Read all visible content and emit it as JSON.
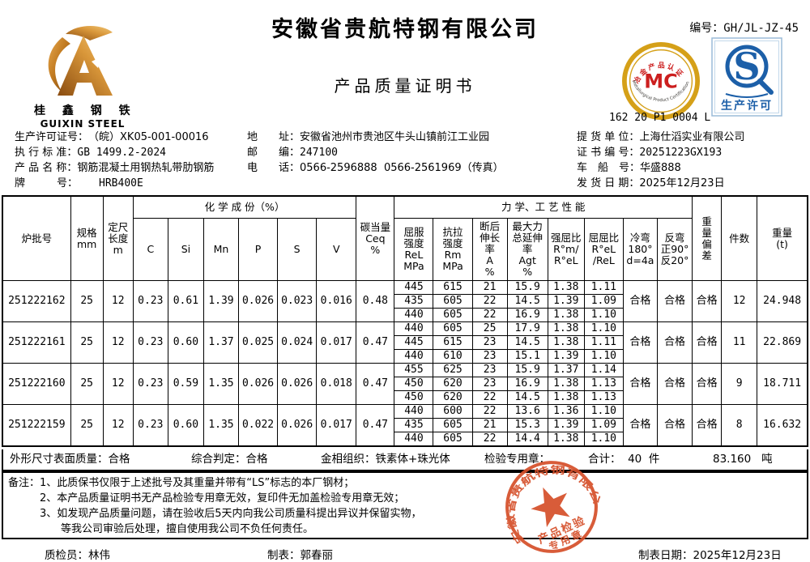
{
  "header": {
    "company": "安徽省贵航特钢有限公司",
    "doc_title": "产品质量证明书",
    "serial_label": "编号：",
    "serial_value": "GH/JL-JZ-45",
    "logo": {
      "cn": "桂 鑫 钢 铁",
      "en": "GUIXIN STEEL"
    },
    "mc_badge": {
      "arc_top": "冶金产品认证",
      "center": "MC",
      "arc_bottom": "Metallurgical Product Certification",
      "code": "162 20 P1 0004 L",
      "ring_color": "#d5a018",
      "letter_color": "#cc1f1f"
    },
    "qs_badge": {
      "letter": "S",
      "label": "生产许可",
      "color": "#1c5fa8"
    }
  },
  "info": {
    "left": [
      {
        "label": "生产许可证号：",
        "value": "（皖）XK05-001-00016"
      },
      {
        "label": "执 行 标 准：",
        "value": "GB 1499.2-2024"
      },
      {
        "label": "产 品 名 称：",
        "value": "钢筋混凝土用钢热轧带肋钢筋"
      },
      {
        "label": "牌　　　号：",
        "value": "　　HRB400E"
      }
    ],
    "middle": [
      {
        "label": "地　　址：",
        "value": "安徽省池州市贵池区牛头山镇前江工业园"
      },
      {
        "label": "邮　　编：",
        "value": "247100"
      },
      {
        "label": "电　　话：",
        "value": "0566-2596888  0566-2561969（传真）"
      }
    ],
    "right": [
      {
        "label": "提 货 单 位：",
        "value": "上海仕滔实业有限公司"
      },
      {
        "label": "证 书 编 号：",
        "value": "20251223GX193"
      },
      {
        "label": "车　船　号：",
        "value": "华盛888"
      },
      {
        "label": "发 货 日 期：",
        "value": "2025年12月23日"
      }
    ]
  },
  "table": {
    "headers": {
      "heat": "炉批号",
      "spec": "规格\nmm",
      "length": "定尺\n长度\nm",
      "chem_group": "化 学 成 份（%）",
      "chem": [
        "C",
        "Si",
        "Mn",
        "P",
        "S",
        "V"
      ],
      "ceq": "碳当量\nCeq\n%",
      "mech_group": "力 学、工 艺 性 能",
      "mech": [
        "屈服\n强度\nReL\nMPa",
        "抗拉\n强度\nRm\nMPa",
        "断后\n伸长\n率\nA\n%",
        "最大力\n总延伸\n率\nAgt\n%",
        "强屈比\nR°m/\nR°eL",
        "屈屈比\nR°eL\n/ReL",
        "冷弯\n180°\nd=4a",
        "反弯\n正90°\n反20°"
      ],
      "weight_dev": "重\n量\n偏\n差",
      "pieces": "件数",
      "weight": "重量\n(t)"
    },
    "batches": [
      {
        "heat_no": "251222162",
        "spec": "25",
        "length": "12",
        "chem": [
          "0.23",
          "0.61",
          "1.39",
          "0.026",
          "0.023",
          "0.016"
        ],
        "ceq": "0.48",
        "mech": [
          [
            "445",
            "615",
            "21",
            "15.9",
            "1.38",
            "1.11"
          ],
          [
            "435",
            "605",
            "22",
            "14.5",
            "1.39",
            "1.09"
          ],
          [
            "440",
            "605",
            "22",
            "16.9",
            "1.38",
            "1.10"
          ]
        ],
        "cold_bend": "合格",
        "reverse_bend": "合格",
        "weight_deviation": "合格",
        "pieces": "12",
        "weight": "24.948"
      },
      {
        "heat_no": "251222161",
        "spec": "25",
        "length": "12",
        "chem": [
          "0.23",
          "0.60",
          "1.37",
          "0.025",
          "0.024",
          "0.017"
        ],
        "ceq": "0.47",
        "mech": [
          [
            "440",
            "605",
            "25",
            "17.9",
            "1.38",
            "1.10"
          ],
          [
            "445",
            "615",
            "23",
            "14.5",
            "1.38",
            "1.11"
          ],
          [
            "440",
            "610",
            "23",
            "15.1",
            "1.39",
            "1.10"
          ]
        ],
        "cold_bend": "合格",
        "reverse_bend": "合格",
        "weight_deviation": "合格",
        "pieces": "11",
        "weight": "22.869"
      },
      {
        "heat_no": "251222160",
        "spec": "25",
        "length": "12",
        "chem": [
          "0.23",
          "0.59",
          "1.35",
          "0.026",
          "0.026",
          "0.018"
        ],
        "ceq": "0.47",
        "mech": [
          [
            "455",
            "625",
            "23",
            "15.9",
            "1.37",
            "1.14"
          ],
          [
            "450",
            "620",
            "23",
            "16.9",
            "1.38",
            "1.13"
          ],
          [
            "450",
            "620",
            "22",
            "14.5",
            "1.38",
            "1.13"
          ]
        ],
        "cold_bend": "合格",
        "reverse_bend": "合格",
        "weight_deviation": "合格",
        "pieces": "9",
        "weight": "18.711"
      },
      {
        "heat_no": "251222159",
        "spec": "25",
        "length": "12",
        "chem": [
          "0.23",
          "0.60",
          "1.35",
          "0.022",
          "0.026",
          "0.017"
        ],
        "ceq": "0.47",
        "mech": [
          [
            "440",
            "600",
            "22",
            "13.6",
            "1.36",
            "1.10"
          ],
          [
            "435",
            "605",
            "21",
            "15.3",
            "1.39",
            "1.09"
          ],
          [
            "440",
            "605",
            "22",
            "14.4",
            "1.38",
            "1.10"
          ]
        ],
        "cold_bend": "合格",
        "reverse_bend": "合格",
        "weight_deviation": "合格",
        "pieces": "8",
        "weight": "16.632"
      }
    ]
  },
  "summary": {
    "surface": "外形尺寸表面质量：合格",
    "overall": "综合判定：合格",
    "metallographic": "金相组织：铁素体+珠光体",
    "stamp_label": "检验专用章：",
    "total_label": "合计：  40  件",
    "total_weight": "83.160   吨"
  },
  "stamp": {
    "ring_text": "安徽省贵航特钢有限公司",
    "line1": "产品检验",
    "line2": "专用章",
    "color": "#d6502b"
  },
  "notes": {
    "title": "备注：",
    "lines": [
      "1、此质保书仅限于上述批号及其重量并带有“LS”标志的本厂钢材；",
      "2、本产品质量证明书无产品检验专用章无效，复印件无加盖检验专用章无效；",
      "3、如发现产品质量问题，请在验收后5天内向我公司质量科提出异议并保留实物，",
      "　　等我公司审验后处理，擅自使用我公司不负任何责任。"
    ]
  },
  "footer": {
    "inspector": "质检员：林伟",
    "maker": "制表：郭春丽",
    "date": "制表日期：2025年12月23日"
  }
}
